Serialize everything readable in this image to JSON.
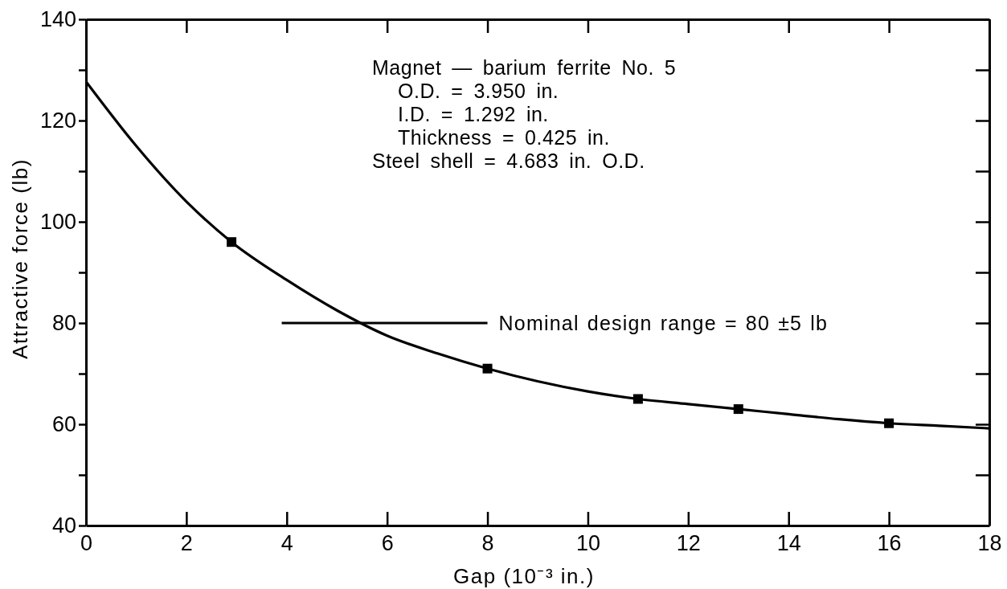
{
  "chart_data": {
    "type": "line",
    "xlabel": "Gap (10⁻³ in.)",
    "ylabel": "Attractive force (lb)",
    "xlim": [
      0,
      18
    ],
    "ylim": [
      40,
      140
    ],
    "xticks": [
      0,
      2,
      4,
      6,
      8,
      10,
      12,
      14,
      16,
      18
    ],
    "yticks": [
      40,
      {
        "value": 50,
        "label": null
      },
      60,
      {
        "value": 70,
        "label": null
      },
      80,
      {
        "value": 90,
        "label": null
      },
      100,
      {
        "value": 110,
        "label": null
      },
      120,
      {
        "value": 130,
        "label": null
      },
      140
    ],
    "series": [
      {
        "color": "#000000",
        "marker": "none",
        "x": [
          0,
          1,
          2,
          2.9,
          4,
          5,
          6,
          7,
          8,
          9,
          10,
          11,
          12,
          13,
          14,
          15,
          16,
          17,
          18
        ],
        "values": [
          127.7,
          115,
          104,
          96,
          88.5,
          82.5,
          77.5,
          74,
          71,
          68.5,
          66.5,
          65,
          64,
          63,
          62,
          61,
          60.2,
          59.7,
          59.2
        ]
      },
      {
        "type": "scatter",
        "color": "#000000",
        "marker": "square",
        "x": [
          2.9,
          8,
          11,
          13,
          16
        ],
        "values": [
          96,
          71,
          65,
          63,
          60.2
        ]
      },
      {
        "color": "#000000",
        "marker": "none",
        "x": [
          3.9,
          8
        ],
        "values": [
          80,
          80
        ]
      }
    ],
    "annotations": [
      "Magnet — barium ferrite No. 5",
      "O.D. = 3.950 in.",
      "I.D.  = 1.292 in.",
      "Thickness = 0.425 in.",
      "Steel shell = 4.683 in. O.D.",
      {
        "text": "Nominal design range = 80 ±5 lb",
        "x": 8,
        "y": 80
      }
    ]
  }
}
